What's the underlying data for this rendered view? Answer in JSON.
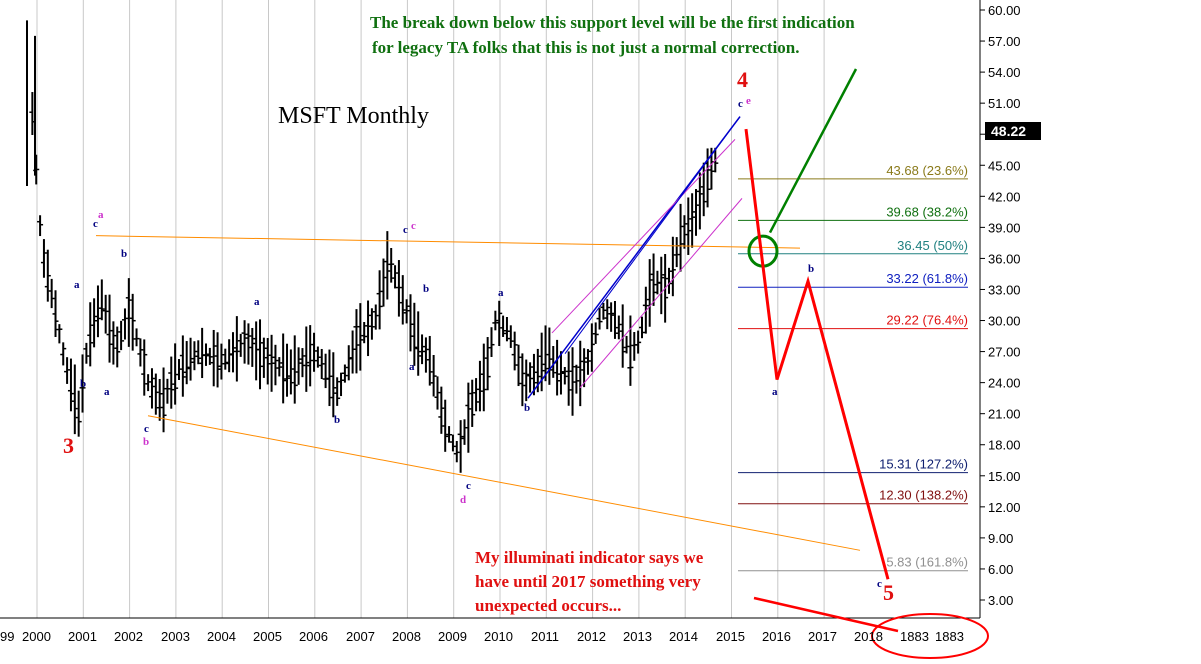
{
  "chart_data": {
    "type": "line",
    "title": "MSFT Monthly",
    "last_price": "48.22",
    "y_ticks": [
      "60.00",
      "57.00",
      "54.00",
      "51.00",
      "48.00",
      "45.00",
      "42.00",
      "39.00",
      "36.00",
      "33.00",
      "30.00",
      "27.00",
      "24.00",
      "21.00",
      "18.00",
      "15.00",
      "12.00",
      "9.00",
      "6.00",
      "3.00"
    ],
    "x_ticks": [
      "99",
      "2000",
      "2001",
      "2002",
      "2003",
      "2004",
      "2005",
      "2006",
      "2007",
      "2008",
      "2009",
      "2010",
      "2011",
      "2012",
      "2013",
      "2014",
      "2015",
      "2016",
      "2017",
      "2018",
      "1883"
    ],
    "fib_levels": [
      {
        "label": "43.68 (23.6%)",
        "value": 43.68,
        "color": "#8a7a1a"
      },
      {
        "label": "39.68 (38.2%)",
        "value": 39.68,
        "color": "#107010"
      },
      {
        "label": "36.45 (50%)",
        "value": 36.45,
        "color": "#208080"
      },
      {
        "label": "33.22 (61.8%)",
        "value": 33.22,
        "color": "#1020c0"
      },
      {
        "label": "29.22 (76.4%)",
        "value": 29.22,
        "color": "#e01010"
      },
      {
        "label": "15.31 (127.2%)",
        "value": 15.31,
        "color": "#102070"
      },
      {
        "label": "12.30 (138.2%)",
        "value": 12.3,
        "color": "#801010"
      },
      {
        "label": "5.83 (161.8%)",
        "value": 5.83,
        "color": "#909090"
      }
    ],
    "price_path": [
      [
        1999.9,
        50
      ],
      [
        2000.1,
        37
      ],
      [
        2000.3,
        33
      ],
      [
        2000.6,
        26
      ],
      [
        2000.9,
        21
      ],
      [
        2001.1,
        28
      ],
      [
        2001.4,
        32
      ],
      [
        2001.7,
        27
      ],
      [
        2002.0,
        31
      ],
      [
        2002.4,
        24
      ],
      [
        2002.7,
        22
      ],
      [
        2003.0,
        25
      ],
      [
        2003.5,
        27
      ],
      [
        2004.0,
        26
      ],
      [
        2004.5,
        28
      ],
      [
        2005.0,
        26
      ],
      [
        2005.5,
        25
      ],
      [
        2006.0,
        27
      ],
      [
        2006.5,
        23
      ],
      [
        2006.9,
        28
      ],
      [
        2007.3,
        30
      ],
      [
        2007.6,
        36
      ],
      [
        2007.9,
        32
      ],
      [
        2008.2,
        28
      ],
      [
        2008.5,
        26
      ],
      [
        2008.8,
        20
      ],
      [
        2009.1,
        17
      ],
      [
        2009.4,
        22
      ],
      [
        2009.7,
        25
      ],
      [
        2009.9,
        30
      ],
      [
        2010.2,
        29
      ],
      [
        2010.5,
        24
      ],
      [
        2010.8,
        25
      ],
      [
        2011.0,
        27
      ],
      [
        2011.3,
        25
      ],
      [
        2011.6,
        24
      ],
      [
        2011.9,
        26
      ],
      [
        2012.2,
        31
      ],
      [
        2012.5,
        30
      ],
      [
        2012.8,
        27
      ],
      [
        2013.0,
        28
      ],
      [
        2013.3,
        34
      ],
      [
        2013.6,
        33
      ],
      [
        2013.9,
        38
      ],
      [
        2014.2,
        40
      ],
      [
        2014.5,
        44
      ],
      [
        2014.7,
        46
      ],
      [
        2014.8,
        48.2
      ]
    ],
    "projection": [
      [
        2014.8,
        48.5
      ],
      [
        2015.3,
        24.3
      ],
      [
        2015.9,
        33.8
      ],
      [
        2017.4,
        5
      ]
    ],
    "green_projection": [
      [
        2015.0,
        36.5
      ],
      [
        2016.9,
        54.5
      ]
    ],
    "wave_labels": [
      "3",
      "4",
      "5",
      "a",
      "b",
      "c",
      "d",
      "e"
    ],
    "annotations": {
      "top": "The break down below this support level will be the first indication for legacy TA folks that this is not just a normal correction.",
      "bottom": "My illuminati indicator says we have until 2017 something very unexpected occurs..."
    },
    "colors": {
      "support": "#ff8c00",
      "channel_blue": "#0000cc",
      "channel_magenta": "#cc33cc",
      "projection": "#ff0000",
      "green": "#008000",
      "grid": "#c8c8c8"
    }
  }
}
